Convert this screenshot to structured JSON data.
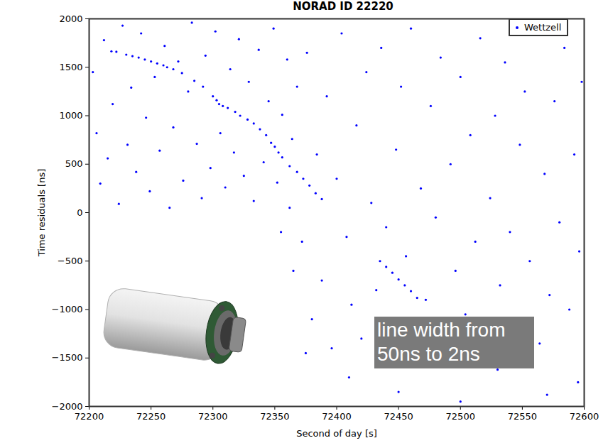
{
  "chart_data": {
    "type": "scatter",
    "title": "NORAD ID 22220",
    "x_label": "Second of day [s]",
    "y_label": "Time residuals [ns]",
    "x": [
      72218,
      72222,
      72230,
      72235,
      72240,
      72245,
      72250,
      72255,
      72260,
      72263,
      72268,
      72275,
      72285,
      72292,
      72300,
      72303,
      72305,
      72308,
      72312,
      72318,
      72322,
      72328,
      72333,
      72338,
      72343,
      72347,
      72350,
      72353,
      72356,
      72362,
      72368,
      72373,
      72378,
      72383,
      72388,
      72435,
      72440,
      72445,
      72450,
      72455,
      72460,
      72465,
      72203,
      72206,
      72209,
      72212,
      72215,
      72219,
      72224,
      72227,
      72231,
      72234,
      72238,
      72242,
      72246,
      72249,
      72253,
      72257,
      72261,
      72265,
      72268,
      72272,
      72276,
      72280,
      72283,
      72287,
      72291,
      72294,
      72298,
      72302,
      72306,
      72310,
      72314,
      72317,
      72321,
      72325,
      72329,
      72333,
      72337,
      72341,
      72345,
      72349,
      72352,
      72356,
      72360,
      72364,
      72368,
      72372,
      72376,
      72380,
      72384,
      72388,
      72392,
      72396,
      72400,
      72404,
      72408,
      72412,
      72416,
      72420,
      72424,
      72428,
      72432,
      72436,
      72440,
      72444,
      72448,
      72452,
      72456,
      72460,
      72464,
      72468,
      72472,
      72476,
      72480,
      72484,
      72488,
      72492,
      72496,
      72500,
      72504,
      72508,
      72512,
      72516,
      72520,
      72524,
      72528,
      72532,
      72536,
      72540,
      72544,
      72548,
      72552,
      72556,
      72560,
      72564,
      72568,
      72572,
      72576,
      72580,
      72584,
      72588,
      72592,
      72596,
      72598,
      72410,
      72450,
      72500,
      72530,
      72570,
      72595,
      72355,
      72365,
      72375,
      72362
    ],
    "series": [
      {
        "name": "Wettzell",
        "color": "#0000ff",
        "marker": "point",
        "values": [
          1665,
          1660,
          1630,
          1615,
          1600,
          1580,
          1560,
          1540,
          1520,
          1500,
          1480,
          1440,
          1360,
          1300,
          1200,
          1160,
          1120,
          1100,
          1080,
          1040,
          1000,
          960,
          920,
          860,
          800,
          720,
          680,
          620,
          570,
          480,
          420,
          350,
          280,
          200,
          140,
          -500,
          -560,
          -620,
          -690,
          -750,
          -810,
          -880,
          1450,
          820,
          300,
          1780,
          560,
          1120,
          90,
          1930,
          700,
          1290,
          420,
          1850,
          980,
          220,
          1400,
          640,
          1720,
          50,
          880,
          1560,
          330,
          1250,
          1960,
          710,
          150,
          1620,
          460,
          1870,
          820,
          260,
          1480,
          620,
          1790,
          380,
          1350,
          120,
          1680,
          520,
          1150,
          1900,
          310,
          1010,
          1580,
          760,
          1300,
          -300,
          1650,
          -1100,
          600,
          -700,
          1200,
          -1400,
          350,
          1850,
          -250,
          -950,
          900,
          -1300,
          1450,
          100,
          -800,
          1700,
          -150,
          -1200,
          650,
          1300,
          -450,
          1900,
          -1450,
          250,
          -900,
          1100,
          -50,
          1600,
          -1250,
          500,
          -600,
          1400,
          -1050,
          800,
          -300,
          1800,
          -1400,
          150,
          1000,
          -750,
          1550,
          -200,
          -1150,
          700,
          1250,
          -500,
          1950,
          -1350,
          400,
          -850,
          1150,
          -100,
          1700,
          -1000,
          600,
          -400,
          1350,
          -1700,
          -1850,
          -1950,
          -1620,
          -1880,
          -1750,
          -200,
          -600,
          -1450,
          50
        ]
      }
    ],
    "xlim": [
      72200,
      72600
    ],
    "xticks": [
      72200,
      72250,
      72300,
      72350,
      72400,
      72450,
      72500,
      72550,
      72600
    ],
    "ylim": [
      -2000,
      2000
    ],
    "yticks": [
      {
        "value": -2000,
        "label": "−2000"
      },
      {
        "value": -1500,
        "label": "−1500"
      },
      {
        "value": -1000,
        "label": "−1000"
      },
      {
        "value": -500,
        "label": "−500"
      },
      0,
      500,
      1000,
      1500,
      2000
    ],
    "legend": "upper right",
    "grid": false,
    "annotation": [
      "line width from",
      "50ns to 2ns"
    ]
  }
}
